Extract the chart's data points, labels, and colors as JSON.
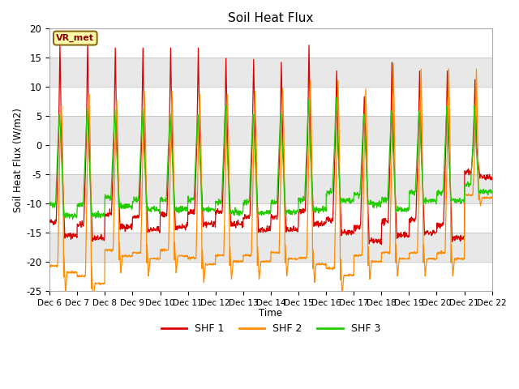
{
  "title": "Soil Heat Flux",
  "ylabel": "Soil Heat Flux (W/m2)",
  "xlabel": "Time",
  "ylim": [
    -25,
    20
  ],
  "yticks": [
    -25,
    -20,
    -15,
    -10,
    -5,
    0,
    5,
    10,
    15,
    20
  ],
  "legend_labels": [
    "SHF 1",
    "SHF 2",
    "SHF 3"
  ],
  "colors": [
    "#dd0000",
    "#ff8c00",
    "#22cc00"
  ],
  "background_color": "#e8e8e8",
  "band_color": "#f5f5f5",
  "vr_met_label": "VR_met",
  "n_days": 16,
  "start_day": 6,
  "points_per_day": 96,
  "shf1_day_peaks": [
    17.5,
    18.0,
    17.0,
    17.0,
    17.0,
    17.0,
    15.2,
    15.0,
    14.5,
    17.5,
    13.0,
    8.5,
    14.5,
    13.0,
    13.0,
    11.5
  ],
  "shf1_night_vals": [
    -15.5,
    -16.0,
    -14.0,
    -14.5,
    -14.0,
    -13.5,
    -13.5,
    -14.5,
    -14.5,
    -13.5,
    -15.0,
    -16.5,
    -15.5,
    -15.0,
    -16.0,
    -5.5
  ],
  "shf2_day_peaks": [
    7.0,
    9.0,
    8.0,
    9.5,
    9.5,
    9.0,
    9.0,
    9.5,
    10.0,
    11.5,
    11.5,
    10.0,
    14.5,
    13.5,
    13.5,
    13.5
  ],
  "shf2_night_vals": [
    -23.0,
    -25.0,
    -20.0,
    -20.5,
    -20.0,
    -21.5,
    -21.0,
    -21.0,
    -20.5,
    -21.5,
    -23.5,
    -21.0,
    -20.5,
    -20.5,
    -20.5,
    -9.5
  ],
  "shf3_day_peaks": [
    5.5,
    6.5,
    6.5,
    6.5,
    5.5,
    5.5,
    7.0,
    5.5,
    5.5,
    8.0,
    8.5,
    5.5,
    6.0,
    6.0,
    7.0,
    7.0
  ],
  "shf3_night_vals": [
    -12.0,
    -12.0,
    -10.5,
    -11.0,
    -11.0,
    -11.0,
    -11.5,
    -11.5,
    -11.5,
    -11.0,
    -9.5,
    -10.0,
    -11.0,
    -9.5,
    -9.5,
    -8.0
  ]
}
